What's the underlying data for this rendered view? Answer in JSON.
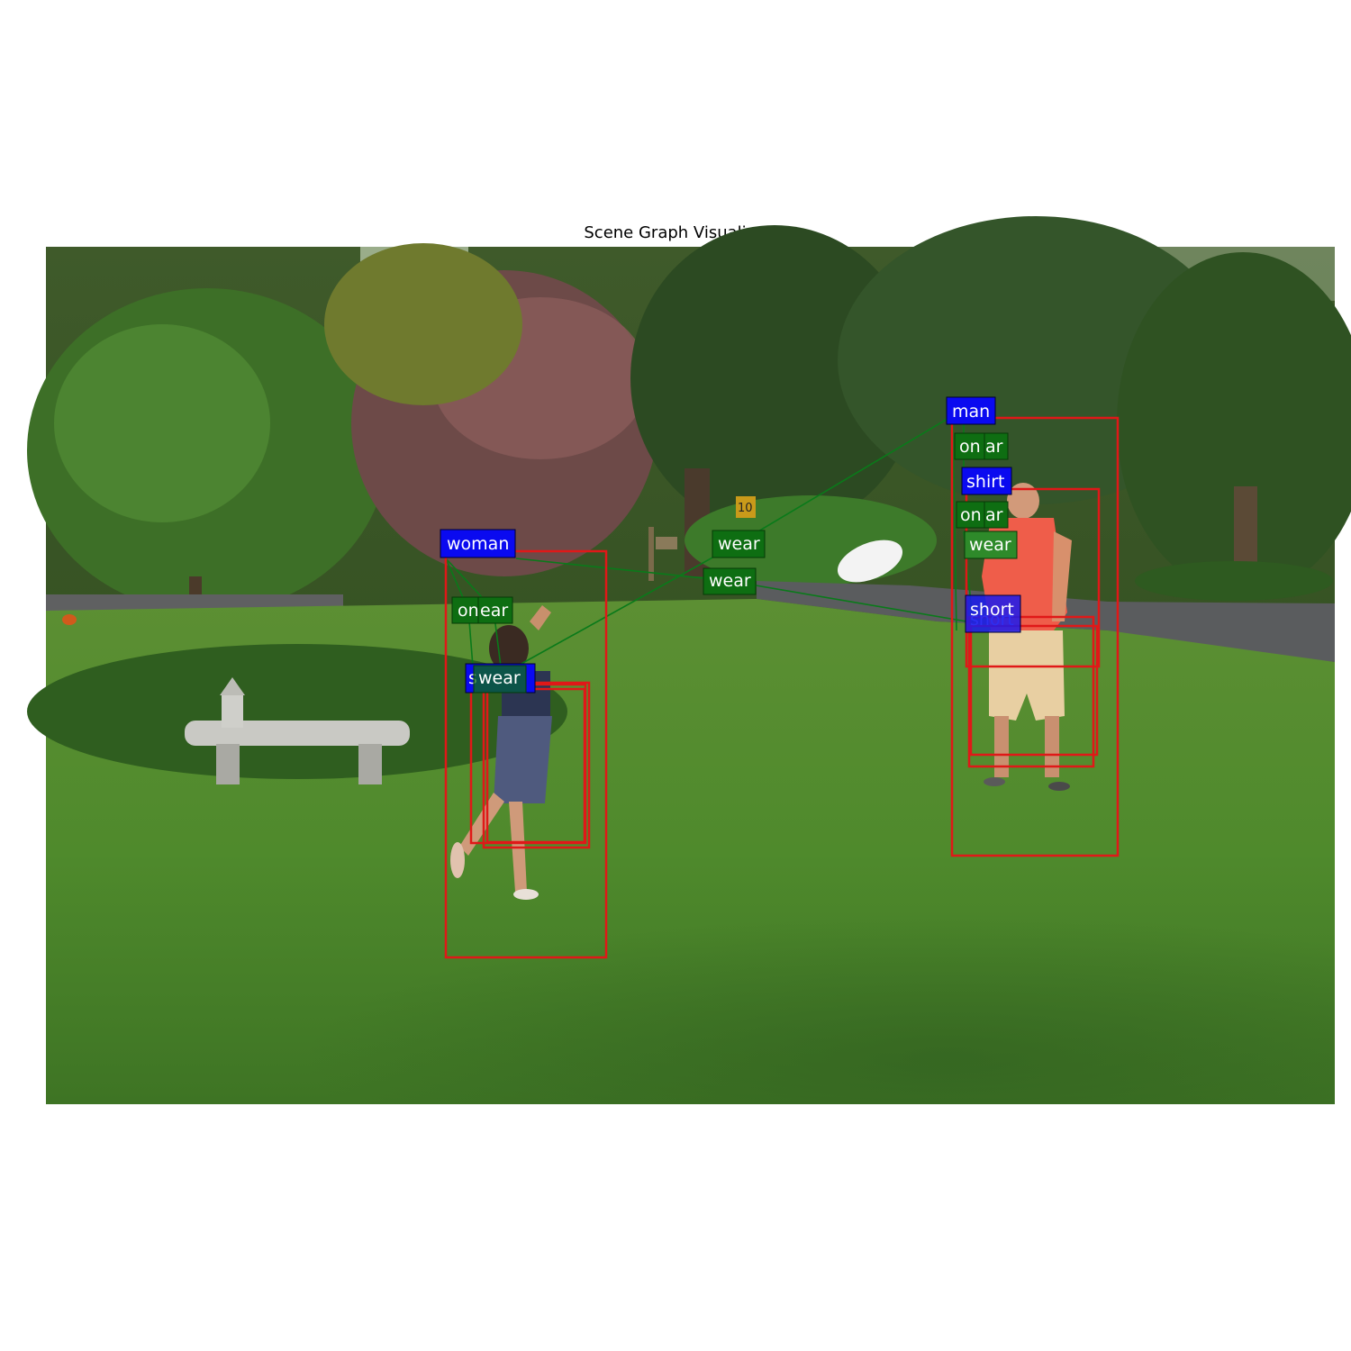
{
  "title": "Scene Graph Visualization",
  "colors": {
    "box": "#e01818",
    "object_label": "#0a0af0",
    "relation_label": "#0e6e12",
    "edge": "#0a7a1a"
  },
  "objects": {
    "man": "man",
    "shirt_man": "shirt",
    "short_man": "short",
    "short_man_ghost": "short",
    "woman": "woman",
    "shirt_woman": "s",
    "short_woman": "short"
  },
  "relations": {
    "man_on_1": "on",
    "man_wear_1": "ar",
    "man_on_2": "on",
    "man_wear_2": "ar",
    "man_wear_3": "wear",
    "woman_on": "on",
    "woman_wear_1": "ear",
    "woman_wear_2": "wear",
    "cross_wear_1": "wear",
    "cross_wear_2": "wear"
  },
  "scene_text": {
    "sign": "10"
  }
}
